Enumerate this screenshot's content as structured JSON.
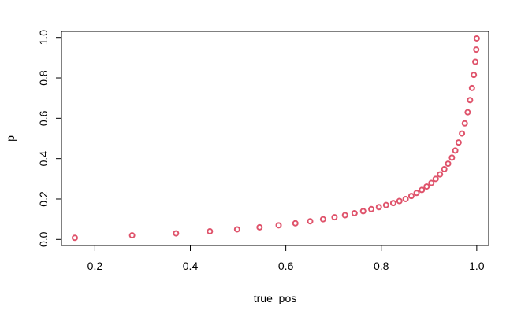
{
  "chart_data": {
    "type": "scatter",
    "title": "",
    "xlabel": "true_pos",
    "ylabel": "p",
    "xlim": [
      0.13,
      1.025
    ],
    "ylim": [
      -0.03,
      1.03
    ],
    "xticks": [
      0.2,
      0.4,
      0.6,
      0.8,
      1.0
    ],
    "xtick_labels": [
      "0.2",
      "0.4",
      "0.6",
      "0.8",
      "1.0"
    ],
    "yticks": [
      0.0,
      0.2,
      0.4,
      0.6,
      0.8,
      1.0
    ],
    "ytick_labels": [
      "0.0",
      "0.2",
      "0.4",
      "0.6",
      "0.8",
      "1.0"
    ],
    "grid": false,
    "legend": "none",
    "marker_color": "#DF536B",
    "series": [
      {
        "x": [
          0.158,
          0.278,
          0.37,
          0.441,
          0.498,
          0.545,
          0.585,
          0.62,
          0.651,
          0.678,
          0.702,
          0.724,
          0.744,
          0.762,
          0.779,
          0.795,
          0.81,
          0.825,
          0.838,
          0.851,
          0.863,
          0.874,
          0.885,
          0.895,
          0.905,
          0.914,
          0.923,
          0.932,
          0.94,
          0.948,
          0.955,
          0.962,
          0.969,
          0.975,
          0.981,
          0.986,
          0.99,
          0.994,
          0.997,
          0.999,
          1.0
        ],
        "y": [
          0.008,
          0.02,
          0.03,
          0.04,
          0.05,
          0.06,
          0.07,
          0.08,
          0.09,
          0.1,
          0.11,
          0.12,
          0.13,
          0.14,
          0.15,
          0.16,
          0.17,
          0.18,
          0.19,
          0.2,
          0.215,
          0.23,
          0.245,
          0.262,
          0.28,
          0.3,
          0.322,
          0.348,
          0.375,
          0.405,
          0.44,
          0.48,
          0.525,
          0.575,
          0.63,
          0.69,
          0.75,
          0.815,
          0.88,
          0.94,
          0.995
        ]
      }
    ]
  }
}
